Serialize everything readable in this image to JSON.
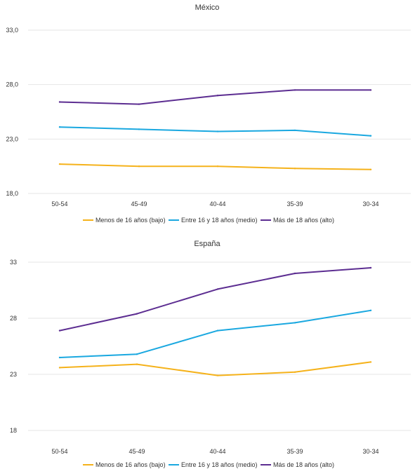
{
  "chart_data": [
    {
      "type": "line",
      "title": "México",
      "categories": [
        "50-54",
        "45-49",
        "40-44",
        "35-39",
        "30-34"
      ],
      "y_ticks": [
        "18,0",
        "23,0",
        "28,0",
        "33,0"
      ],
      "ylim": [
        18,
        33
      ],
      "grid": true,
      "legend_position": "bottom",
      "series": [
        {
          "name": "Menos de 16 años (bajo)",
          "color": "#f5b21b",
          "values": [
            20.7,
            20.5,
            20.5,
            20.3,
            20.2
          ]
        },
        {
          "name": "Entre 16 y 18 años (medio)",
          "color": "#1aa8e0",
          "values": [
            24.1,
            23.9,
            23.7,
            23.8,
            23.3
          ]
        },
        {
          "name": "Más de 18 años (alto)",
          "color": "#5c2d91",
          "values": [
            26.4,
            26.2,
            27.0,
            27.5,
            27.5
          ]
        }
      ]
    },
    {
      "type": "line",
      "title": "España",
      "categories": [
        "50-54",
        "45-49",
        "40-44",
        "35-39",
        "30-34"
      ],
      "y_ticks": [
        "18",
        "23",
        "28",
        "33"
      ],
      "ylim": [
        18,
        33
      ],
      "grid": true,
      "legend_position": "bottom",
      "series": [
        {
          "name": "Menos de 16 años (bajo)",
          "color": "#f5b21b",
          "values": [
            23.6,
            23.9,
            22.9,
            23.2,
            24.1
          ]
        },
        {
          "name": "Entre 16 y 18 años (medio)",
          "color": "#1aa8e0",
          "values": [
            24.5,
            24.8,
            26.9,
            27.6,
            28.7
          ]
        },
        {
          "name": "Más de 18 años (alto)",
          "color": "#5c2d91",
          "values": [
            26.9,
            28.4,
            30.6,
            32.0,
            32.5
          ]
        }
      ]
    }
  ]
}
